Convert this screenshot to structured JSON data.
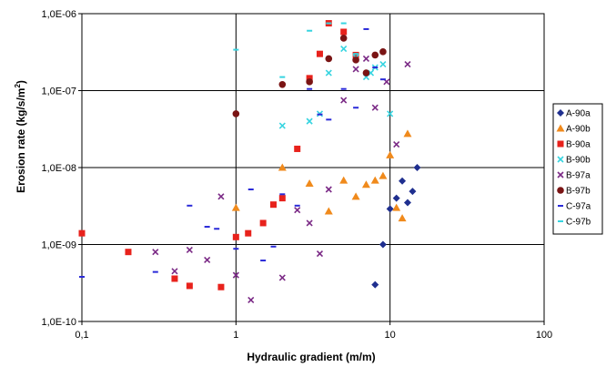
{
  "chart_data": {
    "type": "scatter",
    "title": "",
    "xlabel": "Hydraulic gradient (m/m)",
    "ylabel_main": "Erosion rate (kg/s/m",
    "ylabel_sup": "2",
    "ylabel_end": ")",
    "x_scale": "log",
    "y_scale": "log",
    "xlim": [
      0.1,
      100
    ],
    "ylim": [
      1e-10,
      1e-06
    ],
    "x_ticks": [
      0.1,
      1,
      10,
      100
    ],
    "x_tick_labels": [
      "0,1",
      "1",
      "10",
      "100"
    ],
    "y_ticks": [
      1e-10,
      1e-09,
      1e-08,
      1e-07,
      1e-06
    ],
    "y_tick_labels": [
      "1,0E-10",
      "1,0E-09",
      "1,0E-08",
      "1,0E-07",
      "1,0E-06"
    ],
    "grid": "major",
    "legend_position": "right",
    "series": [
      {
        "name": "A-90a",
        "marker": "diamond",
        "color": "#1f2f8f",
        "points": [
          [
            8,
            3e-10
          ],
          [
            9,
            1e-09
          ],
          [
            10,
            2.9e-09
          ],
          [
            11,
            4e-09
          ],
          [
            12,
            6.7e-09
          ],
          [
            13,
            3.5e-09
          ],
          [
            14,
            4.9e-09
          ],
          [
            15,
            1e-08
          ]
        ]
      },
      {
        "name": "A-90b",
        "marker": "triangle",
        "color": "#f08a1c",
        "points": [
          [
            1,
            3e-09
          ],
          [
            2,
            1e-08
          ],
          [
            3,
            6.2e-09
          ],
          [
            4,
            2.7e-09
          ],
          [
            5,
            6.8e-09
          ],
          [
            6,
            4.2e-09
          ],
          [
            7,
            6e-09
          ],
          [
            8,
            6.8e-09
          ],
          [
            9,
            7.8e-09
          ],
          [
            10,
            1.45e-08
          ],
          [
            11,
            3e-09
          ],
          [
            12,
            2.2e-09
          ],
          [
            13,
            2.75e-08
          ]
        ]
      },
      {
        "name": "B-90a",
        "marker": "square",
        "color": "#e8221c",
        "points": [
          [
            0.1,
            1.4e-09
          ],
          [
            0.2,
            8e-10
          ],
          [
            0.4,
            3.6e-10
          ],
          [
            0.5,
            2.9e-10
          ],
          [
            0.8,
            2.8e-10
          ],
          [
            1,
            1.25e-09
          ],
          [
            1.2,
            1.4e-09
          ],
          [
            1.5,
            1.9e-09
          ],
          [
            1.75,
            3.3e-09
          ],
          [
            2,
            4e-09
          ],
          [
            2.5,
            1.75e-08
          ],
          [
            3,
            1.45e-07
          ],
          [
            3.5,
            3e-07
          ],
          [
            4,
            7.5e-07
          ],
          [
            5,
            5.8e-07
          ],
          [
            6,
            2.9e-07
          ]
        ]
      },
      {
        "name": "B-90b",
        "marker": "x",
        "color": "#36d4e0",
        "points": [
          [
            2,
            3.5e-08
          ],
          [
            3,
            4e-08
          ],
          [
            3.5,
            5e-08
          ],
          [
            4,
            1.7e-07
          ],
          [
            5,
            3.5e-07
          ],
          [
            6,
            2.7e-07
          ],
          [
            7,
            1.5e-07
          ],
          [
            7.5,
            1.7e-07
          ],
          [
            8,
            2e-07
          ],
          [
            9,
            2.2e-07
          ],
          [
            10,
            5e-08
          ]
        ]
      },
      {
        "name": "B-97a",
        "marker": "x",
        "color": "#7b2a86",
        "points": [
          [
            0.3,
            8e-10
          ],
          [
            0.4,
            4.5e-10
          ],
          [
            0.5,
            8.5e-10
          ],
          [
            0.65,
            6.3e-10
          ],
          [
            0.8,
            4.2e-09
          ],
          [
            1,
            4e-10
          ],
          [
            1.25,
            1.9e-10
          ],
          [
            2,
            3.7e-10
          ],
          [
            2.5,
            2.8e-09
          ],
          [
            3,
            1.9e-09
          ],
          [
            3.5,
            7.6e-10
          ],
          [
            4,
            5.2e-09
          ],
          [
            5,
            7.5e-08
          ],
          [
            6,
            1.9e-07
          ],
          [
            7,
            2.6e-07
          ],
          [
            8,
            6e-08
          ],
          [
            9.5,
            1.3e-07
          ],
          [
            11,
            2e-08
          ],
          [
            13,
            2.2e-07
          ]
        ]
      },
      {
        "name": "B-97b",
        "marker": "circle",
        "color": "#7a1414",
        "points": [
          [
            1,
            5e-08
          ],
          [
            2,
            1.2e-07
          ],
          [
            3,
            1.3e-07
          ],
          [
            4,
            2.6e-07
          ],
          [
            5,
            4.8e-07
          ],
          [
            6,
            2.5e-07
          ],
          [
            7,
            1.7e-07
          ],
          [
            8,
            2.9e-07
          ],
          [
            9,
            3.2e-07
          ]
        ]
      },
      {
        "name": "C-97a",
        "marker": "dash",
        "color": "#2a2ad8",
        "points": [
          [
            0.1,
            3.8e-10
          ],
          [
            0.3,
            4.4e-10
          ],
          [
            0.5,
            3.2e-09
          ],
          [
            0.65,
            1.7e-09
          ],
          [
            0.75,
            1.6e-09
          ],
          [
            1,
            8.8e-10
          ],
          [
            1.25,
            5.2e-09
          ],
          [
            1.5,
            6.2e-10
          ],
          [
            1.75,
            9.4e-10
          ],
          [
            2,
            4.5e-09
          ],
          [
            2.5,
            3.2e-09
          ],
          [
            3,
            1.05e-07
          ],
          [
            3.5,
            4.9e-08
          ],
          [
            4,
            4.2e-08
          ],
          [
            5,
            1.05e-07
          ],
          [
            6,
            6e-08
          ],
          [
            7,
            6.3e-07
          ],
          [
            8,
            2e-07
          ],
          [
            9,
            1.4e-07
          ]
        ]
      },
      {
        "name": "C-97b",
        "marker": "dash",
        "color": "#36d4e0",
        "points": [
          [
            1,
            3.4e-07
          ],
          [
            2,
            1.5e-07
          ],
          [
            3,
            6e-07
          ],
          [
            4,
            7.5e-07
          ],
          [
            5,
            7.5e-07
          ],
          [
            6,
            3e-07
          ]
        ]
      }
    ]
  }
}
